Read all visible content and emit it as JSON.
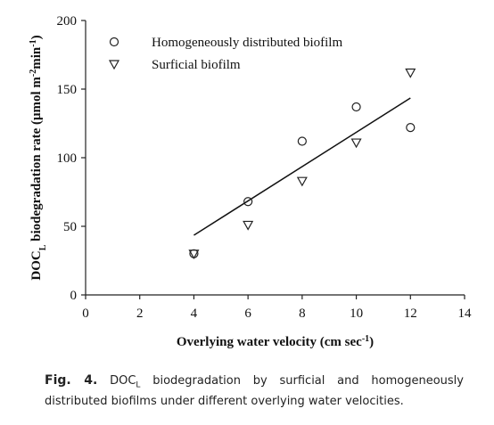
{
  "chart_data": {
    "type": "scatter",
    "xlabel_parts": [
      "Overlying water velocity (cm  sec",
      "-1",
      ")"
    ],
    "ylabel_parts": [
      "DOC",
      "L",
      " biodegradation rate (μmol m",
      "-2",
      "min",
      "-1",
      ")"
    ],
    "x": [
      4,
      6,
      8,
      10,
      12
    ],
    "series": [
      {
        "name": "Homogeneously distributed biofilm",
        "color": "#222222",
        "marker": "circle",
        "values": [
          30,
          68,
          112,
          137,
          122
        ]
      },
      {
        "name": "Surficial biofilm",
        "color": "#222222",
        "marker": "triangle-down",
        "values": [
          30,
          51,
          83,
          111,
          162
        ]
      }
    ],
    "trend_line": {
      "x": [
        4,
        12
      ],
      "values": [
        43.5,
        143.5
      ],
      "color": "#111111"
    },
    "xlim": [
      0,
      14
    ],
    "xticks": [
      0,
      2,
      4,
      6,
      8,
      10,
      12,
      14
    ],
    "ylim": [
      0,
      200
    ],
    "yticks": [
      0,
      50,
      100,
      150,
      200
    ],
    "legend": "upper-left",
    "grid": false
  },
  "caption": {
    "label": "Fig. 4.",
    "parts": [
      "DOC",
      "L",
      " biodegradation by surficial and homogeneously distributed biofilms under different overlying water velocities."
    ]
  }
}
